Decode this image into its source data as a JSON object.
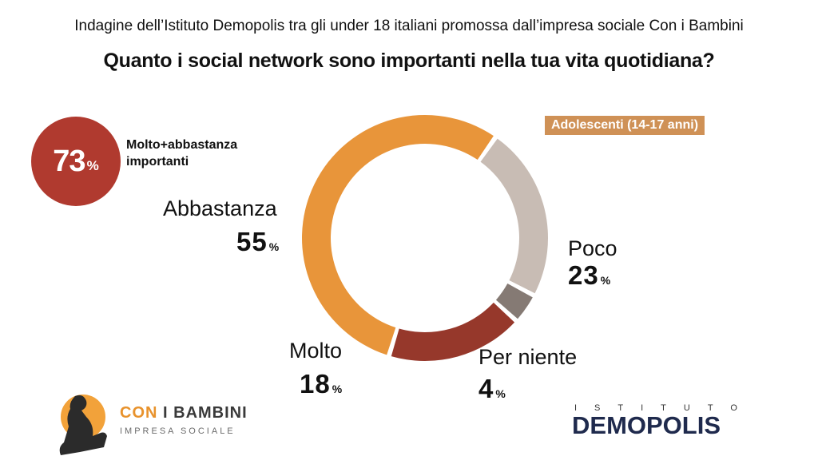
{
  "header": {
    "subtitle": "Indagine dell’Istituto Demopolis tra gli under 18 italiani promossa dall’impresa sociale Con i Bambini",
    "title": "Quanto i social network sono importanti nella tua vita quotidiana?"
  },
  "summary": {
    "value": "73",
    "unit": "%",
    "label": "Molto+abbastanza importanti",
    "color": "#b03a2f"
  },
  "group_tag": {
    "label": "Adolescenti (14-17 anni)",
    "color": "#cf9156"
  },
  "chart_data": {
    "type": "pie",
    "style": "donut",
    "title": "Quanto i social network sono importanti nella tua vita quotidiana?",
    "series_name": "Adolescenti (14-17 anni)",
    "unit": "%",
    "slices": [
      {
        "label": "Abbastanza",
        "value": 55,
        "color": "#e8953a"
      },
      {
        "label": "Poco",
        "value": 23,
        "color": "#c8bcb4"
      },
      {
        "label": "Per niente",
        "value": 4,
        "color": "#857a74"
      },
      {
        "label": "Molto",
        "value": 18,
        "color": "#96382b"
      }
    ]
  },
  "logos": {
    "left": {
      "brand_a": "CON",
      "brand_b": "I BAMBINI",
      "sub": "IMPRESA SOCIALE"
    },
    "right": {
      "top": "ISTITUTO",
      "main": "DEMOPOLIS"
    }
  }
}
